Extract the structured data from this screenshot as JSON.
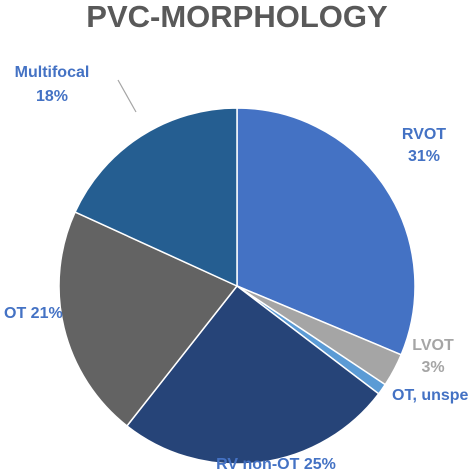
{
  "chart_data": {
    "type": "pie",
    "title": "PVC-MORPHOLOGY",
    "slices": [
      {
        "key": "rvot",
        "name": "RVOT",
        "value": 31,
        "value_label": "31%",
        "color": "#4472C4",
        "label_color": "#4472C4"
      },
      {
        "key": "lvot",
        "name": "LVOT",
        "value": 3,
        "value_label": "3%",
        "color": "#A5A5A5",
        "label_color": "#A5A5A5"
      },
      {
        "key": "ot_unspecified",
        "name": "OT, unspe",
        "value": 1,
        "value_label": "",
        "color": "#5B9BD5",
        "label_color": "#4472C4"
      },
      {
        "key": "rv_non_ot",
        "name": "RV non-OT",
        "value": 25,
        "value_label": "25%",
        "color": "#264478",
        "label_color": "#4472C4"
      },
      {
        "key": "lv_non_ot",
        "name": "OT",
        "value": 21,
        "value_label": "21%",
        "color": "#636363",
        "label_color": "#4472C4"
      },
      {
        "key": "multifocal",
        "name": "Multifocal",
        "value": 18,
        "value_label": "18%",
        "color": "#255E91",
        "label_color": "#4472C4"
      }
    ]
  }
}
